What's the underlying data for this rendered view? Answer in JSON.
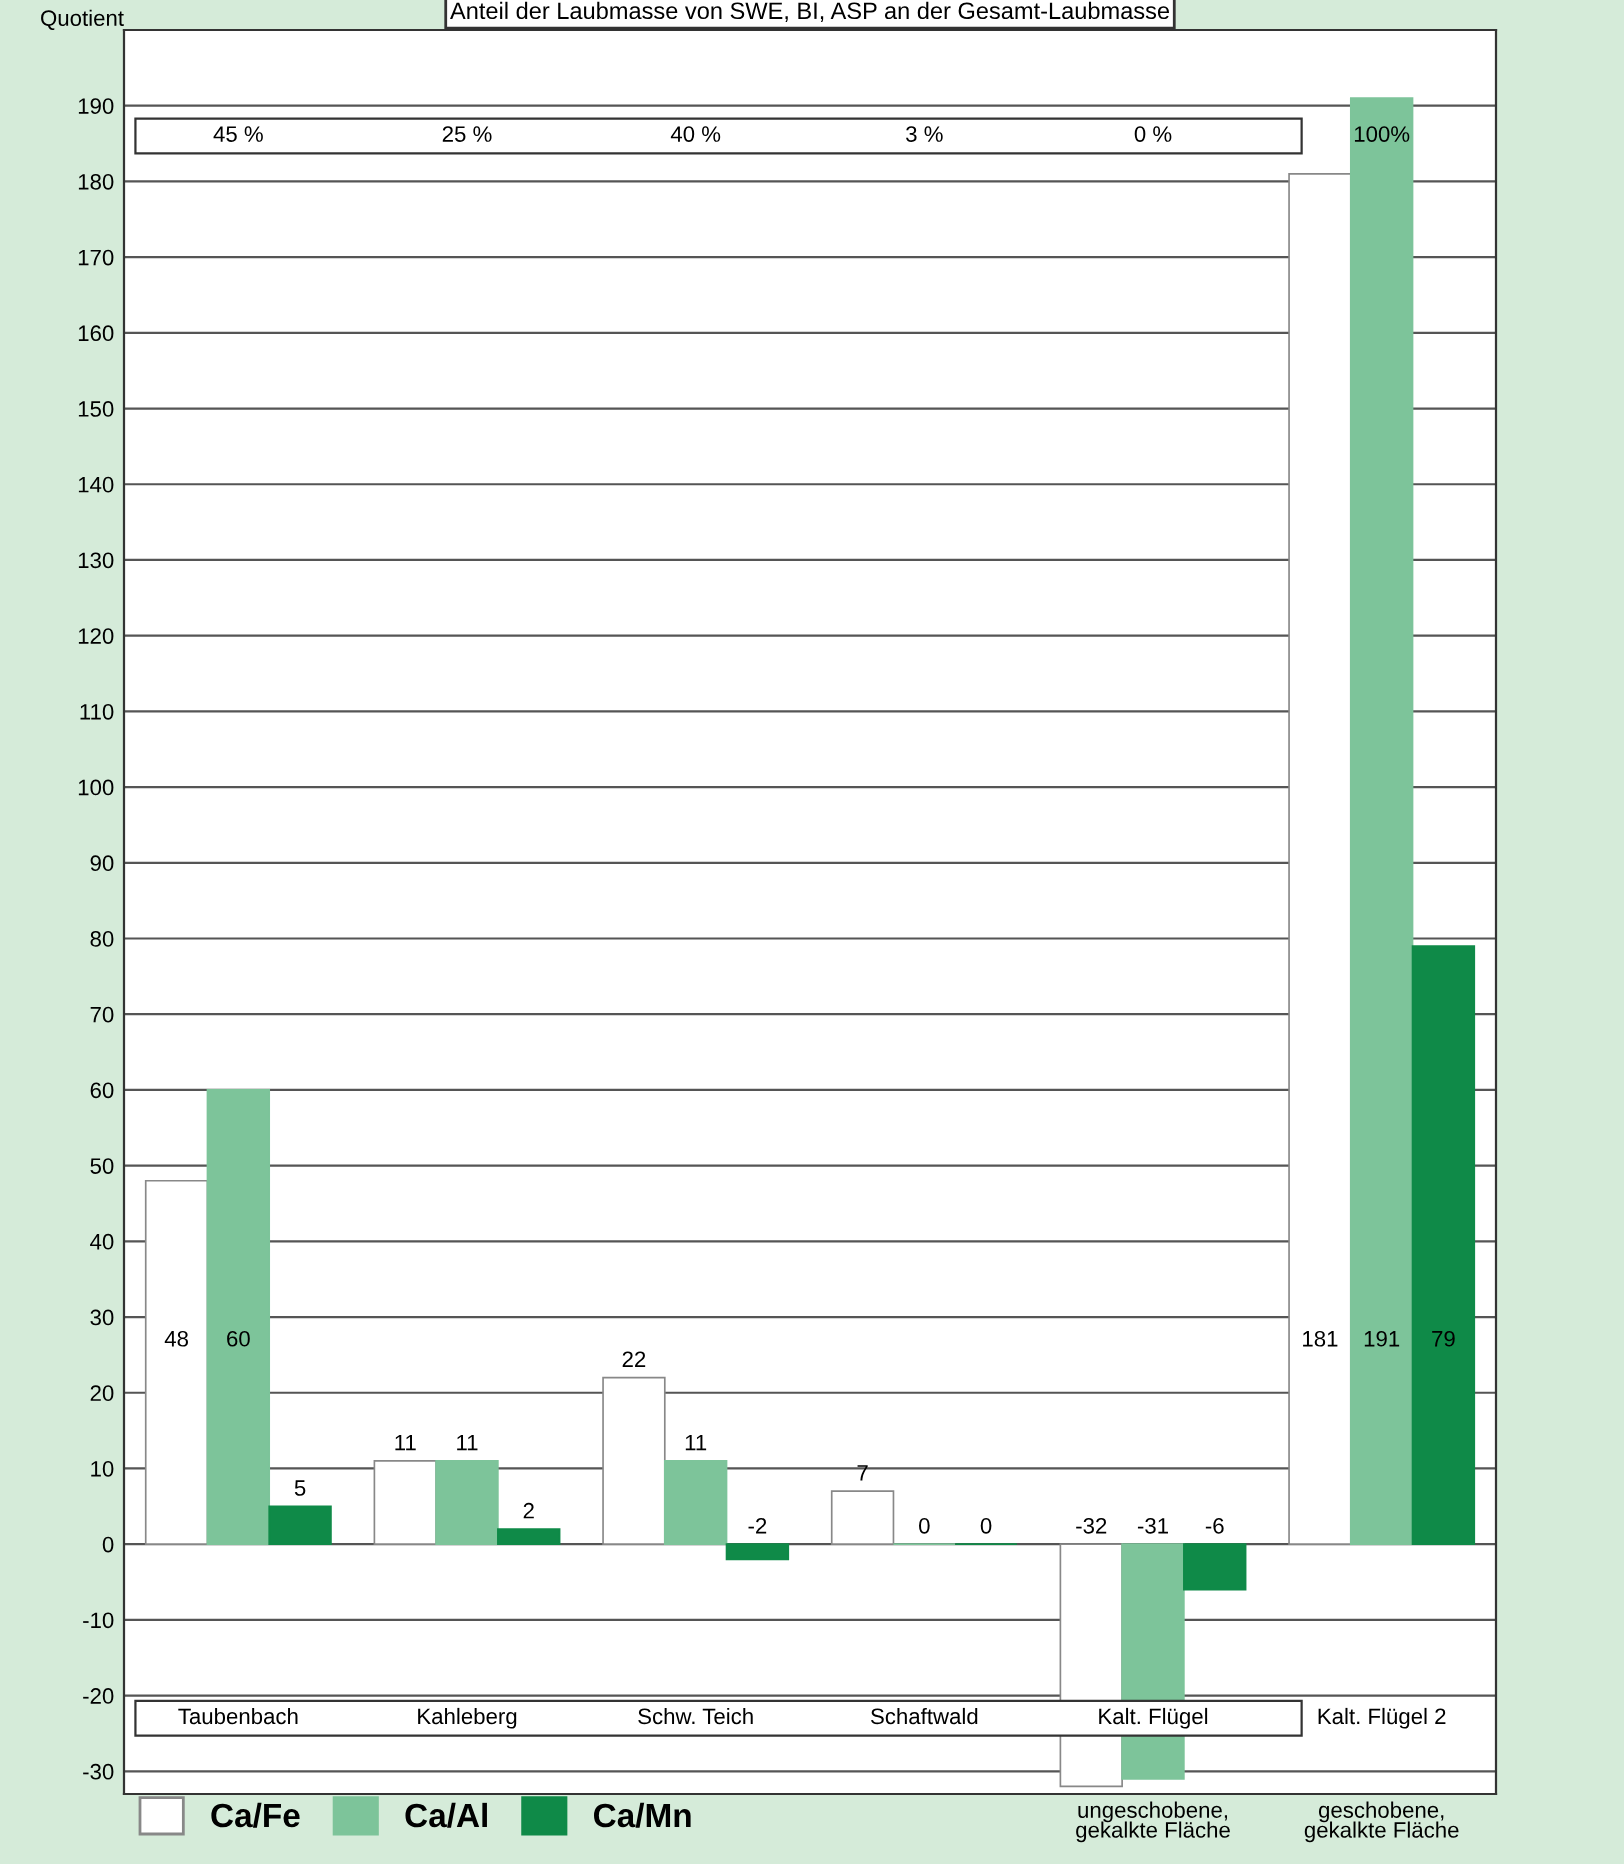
{
  "chart_data": {
    "type": "bar",
    "title": "Anteil der Laubmasse von SWE, BI, ASP an der Gesamt-Laubmasse",
    "ylabel": "Quotient",
    "categories": [
      "Taubenbach",
      "Kahleberg",
      "Schw. Teich",
      "Schaftwald",
      "Kalt. Flügel",
      "Kalt. Flügel 2"
    ],
    "series": [
      {
        "name": "Ca/Fe",
        "color": "#ffffff",
        "values": [
          48,
          11,
          22,
          7,
          -32,
          181
        ]
      },
      {
        "name": "Ca/Al",
        "color": "#7dc49a",
        "values": [
          60,
          11,
          11,
          0,
          -31,
          191
        ]
      },
      {
        "name": "Ca/Mn",
        "color": "#0f8a48",
        "values": [
          5,
          2,
          -2,
          0,
          -6,
          79
        ]
      }
    ],
    "ylim": [
      -33,
      200
    ],
    "yticks": [
      -30,
      -20,
      -10,
      0,
      10,
      20,
      30,
      40,
      50,
      60,
      70,
      80,
      90,
      100,
      110,
      120,
      130,
      140,
      150,
      160,
      170,
      180,
      190
    ],
    "grid": "y",
    "legend": "bottom left",
    "data_labels": true,
    "annotations": [
      "45 %",
      "25 %",
      "40 %",
      "3 %",
      "0 %",
      "100%",
      "ungeschobene, gekalkte Fläche",
      "geschobene, gekalkte Fläche"
    ]
  }
}
